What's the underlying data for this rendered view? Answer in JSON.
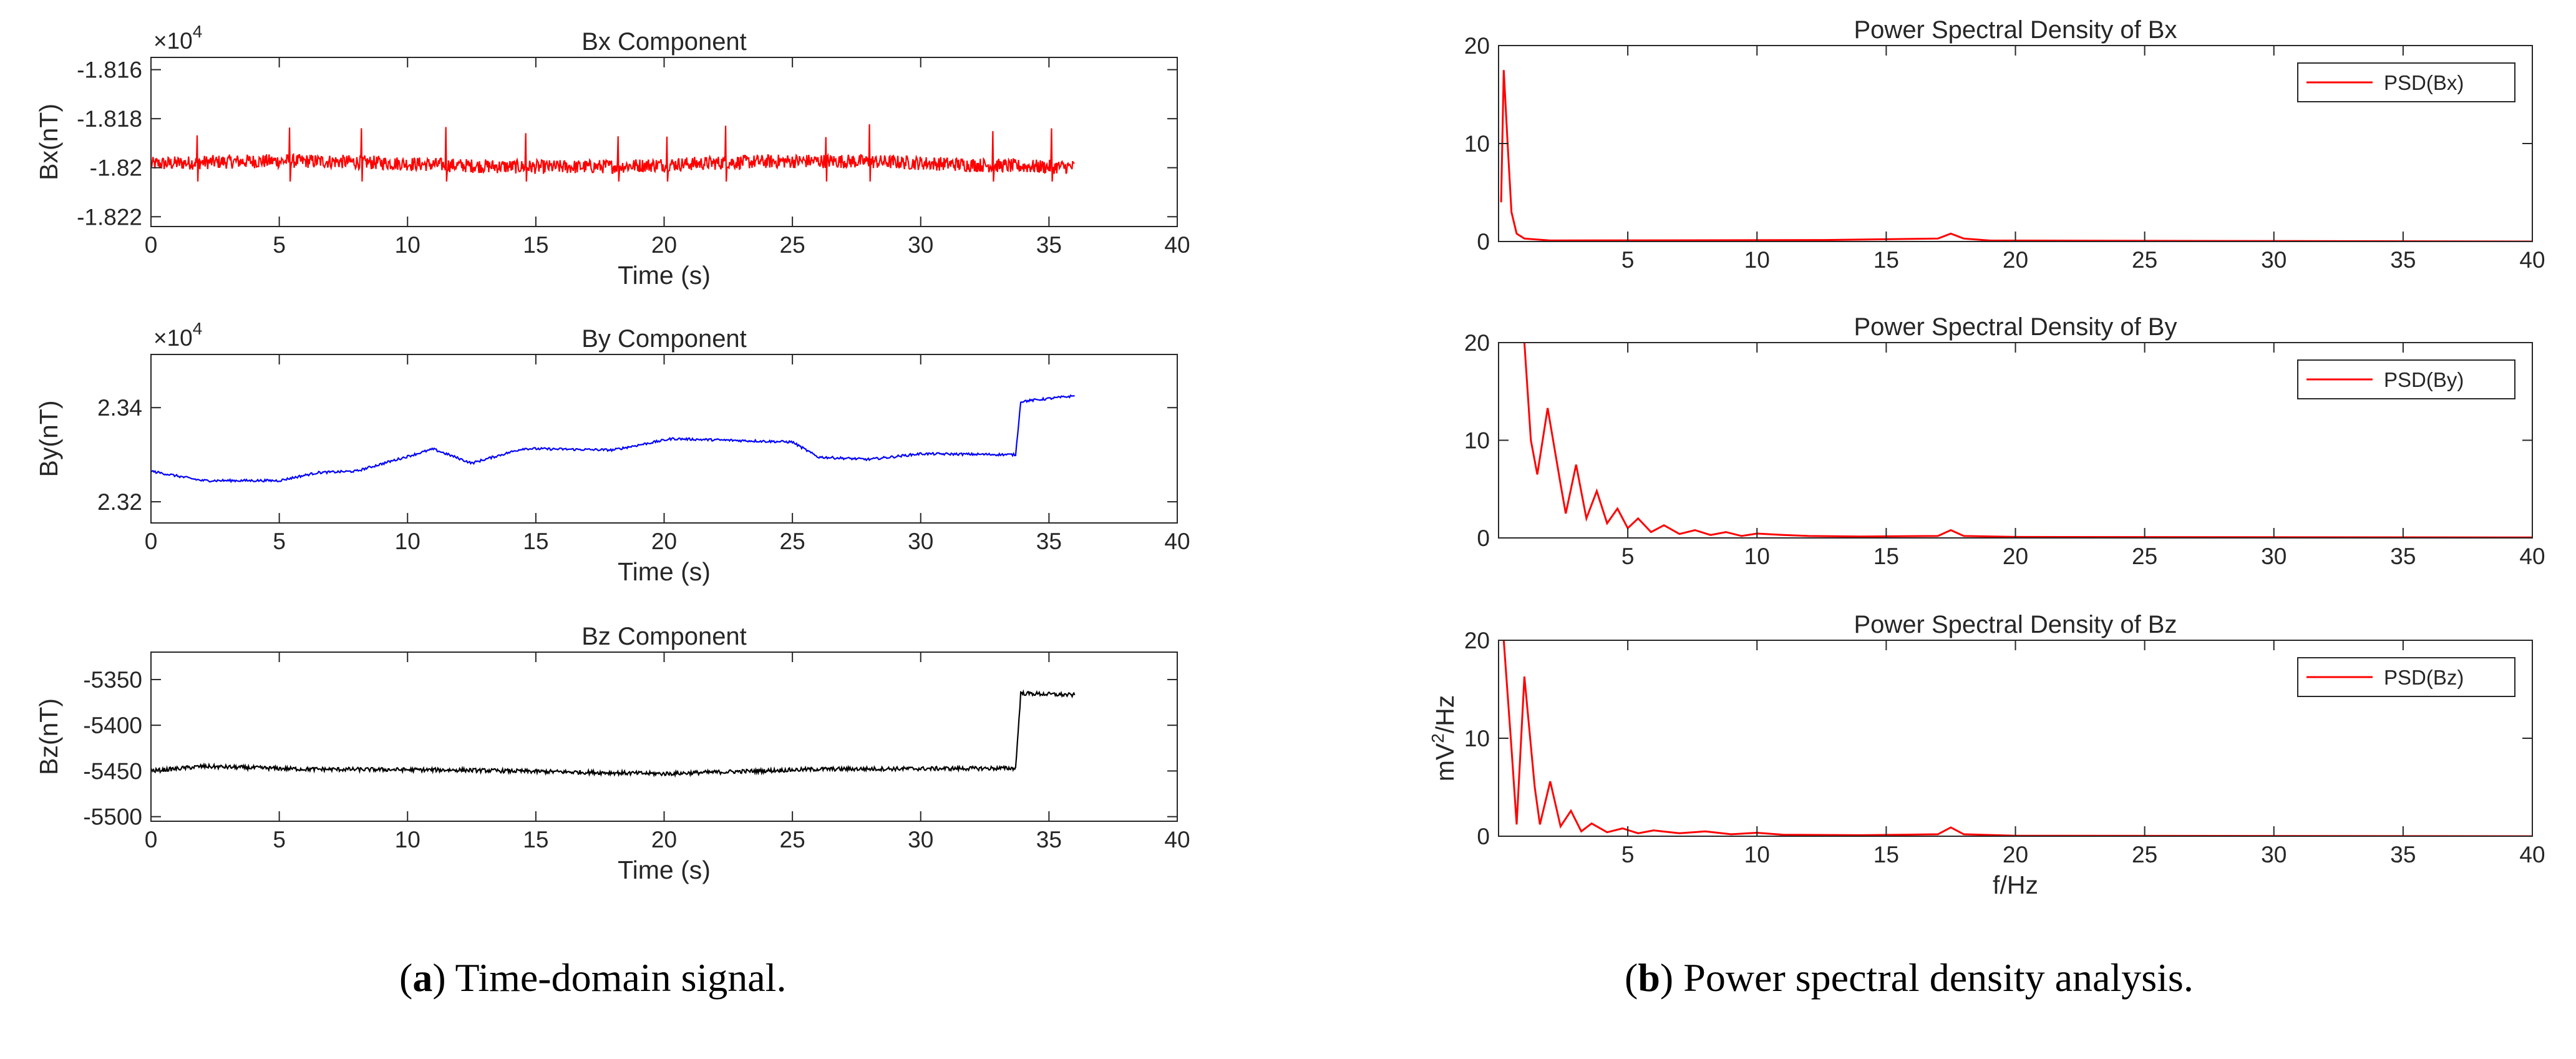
{
  "captions": {
    "a_letter": "a",
    "a_text": "Time-domain signal.",
    "b_letter": "b",
    "b_text": "Power spectral density analysis."
  },
  "chart_data": [
    {
      "id": "bx",
      "type": "line",
      "title": "Bx Component",
      "xlabel": "Time (s)",
      "ylabel": "Bx(nT)",
      "xlim": [
        0,
        40
      ],
      "xticks": [
        0,
        5,
        10,
        15,
        20,
        25,
        30,
        35,
        40
      ],
      "ylim": [
        -1.8224,
        -1.8155
      ],
      "yticks": [
        -1.822,
        -1.82,
        -1.818,
        -1.816
      ],
      "ytick_labels": [
        "-1.822",
        "-1.82",
        "-1.818",
        "-1.816"
      ],
      "exponent": "10",
      "exponent_power": "4",
      "color": "#ff0000",
      "series": [
        {
          "name": "Bx",
          "values": {
            "duration": 36,
            "base": -1.81985,
            "noise": 0.00018,
            "drift": 0.00012,
            "spikes": [
              1.8,
              5.4,
              8.2,
              11.5,
              14.6,
              18.2,
              20.1,
              22.4,
              26.3,
              28.0,
              32.8,
              35.1
            ],
            "spike_height": 0.0013
          }
        }
      ]
    },
    {
      "id": "by",
      "type": "line",
      "title": "By Component",
      "xlabel": "Time (s)",
      "ylabel": "By(nT)",
      "xlim": [
        0,
        40
      ],
      "xticks": [
        0,
        5,
        10,
        15,
        20,
        25,
        30,
        35,
        40
      ],
      "ylim": [
        2.3155,
        2.3513
      ],
      "yticks": [
        2.32,
        2.34
      ],
      "ytick_labels": [
        "2.32",
        "2.34"
      ],
      "exponent": "10",
      "exponent_power": "4",
      "color": "#0000ff",
      "series": [
        {
          "name": "By",
          "values": {
            "points": [
              [
                0,
                2.3265
              ],
              [
                2,
                2.3245
              ],
              [
                5,
                2.3245
              ],
              [
                6.5,
                2.3262
              ],
              [
                8,
                2.3265
              ],
              [
                11,
                2.3312
              ],
              [
                12.5,
                2.3282
              ],
              [
                14.5,
                2.3313
              ],
              [
                18,
                2.331
              ],
              [
                20.3,
                2.3334
              ],
              [
                25,
                2.3327
              ],
              [
                26,
                2.3295
              ],
              [
                28,
                2.329
              ],
              [
                30,
                2.3302
              ],
              [
                33.7,
                2.33
              ],
              [
                33.9,
                2.3413
              ],
              [
                36,
                2.3425
              ]
            ]
          }
        }
      ]
    },
    {
      "id": "bz",
      "type": "line",
      "title": "Bz Component",
      "xlabel": "Time (s)",
      "ylabel": "Bz(nT)",
      "xlim": [
        0,
        40
      ],
      "xticks": [
        0,
        5,
        10,
        15,
        20,
        25,
        30,
        35,
        40
      ],
      "ylim": [
        -5505,
        -5320
      ],
      "yticks": [
        -5500,
        -5450,
        -5400,
        -5350
      ],
      "ytick_labels": [
        "-5500",
        "-5450",
        "-5400",
        "-5350"
      ],
      "color": "#000000",
      "series": [
        {
          "name": "Bz",
          "values": {
            "points": [
              [
                0,
                -5450
              ],
              [
                2,
                -5445
              ],
              [
                6,
                -5448
              ],
              [
                12,
                -5449
              ],
              [
                20,
                -5453
              ],
              [
                26,
                -5448
              ],
              [
                33.7,
                -5447
              ],
              [
                33.9,
                -5365
              ],
              [
                36,
                -5367
              ]
            ]
          }
        }
      ]
    },
    {
      "id": "psdx",
      "type": "line",
      "title": "Power Spectral Density of Bx",
      "xlabel": "",
      "ylabel": "",
      "xlim": [
        0,
        40
      ],
      "xticks": [
        5,
        10,
        15,
        20,
        25,
        30,
        35,
        40
      ],
      "ylim": [
        0,
        20
      ],
      "yticks": [
        0,
        10,
        20
      ],
      "ytick_labels": [
        "0",
        "10",
        "20"
      ],
      "color": "#ff0000",
      "legend": "PSD(Bx)",
      "series": [
        {
          "name": "PSD(Bx)",
          "values": {
            "points": [
              [
                0.1,
                4
              ],
              [
                0.2,
                17.5
              ],
              [
                0.35,
                10
              ],
              [
                0.5,
                3
              ],
              [
                0.7,
                0.8
              ],
              [
                1.0,
                0.3
              ],
              [
                2,
                0.1
              ],
              [
                12.6,
                0.15
              ],
              [
                17,
                0.3
              ],
              [
                17.5,
                0.8
              ],
              [
                18,
                0.3
              ],
              [
                19,
                0.1
              ],
              [
                40,
                0
              ]
            ]
          }
        }
      ]
    },
    {
      "id": "psdy",
      "type": "line",
      "title": "Power Spectral Density of By",
      "xlabel": "",
      "ylabel": "",
      "xlim": [
        0,
        40
      ],
      "xticks": [
        5,
        10,
        15,
        20,
        25,
        30,
        35,
        40
      ],
      "ylim": [
        0,
        20
      ],
      "yticks": [
        0,
        10,
        20
      ],
      "ytick_labels": [
        "0",
        "10",
        "20"
      ],
      "color": "#ff0000",
      "legend": "PSD(By)",
      "series": [
        {
          "name": "PSD(By)",
          "values": {
            "points": [
              [
                1.0,
                20
              ],
              [
                1.25,
                10
              ],
              [
                1.5,
                6.5
              ],
              [
                1.9,
                13.3
              ],
              [
                2.4,
                5.5
              ],
              [
                2.6,
                2.5
              ],
              [
                3.0,
                7.5
              ],
              [
                3.4,
                2.0
              ],
              [
                3.8,
                4.8
              ],
              [
                4.2,
                1.5
              ],
              [
                4.6,
                3.0
              ],
              [
                5.0,
                1.0
              ],
              [
                5.4,
                2.0
              ],
              [
                5.9,
                0.6
              ],
              [
                6.4,
                1.3
              ],
              [
                7.0,
                0.4
              ],
              [
                7.6,
                0.8
              ],
              [
                8.2,
                0.3
              ],
              [
                8.8,
                0.6
              ],
              [
                9.4,
                0.2
              ],
              [
                10.0,
                0.45
              ],
              [
                11,
                0.3
              ],
              [
                12,
                0.2
              ],
              [
                14,
                0.15
              ],
              [
                17,
                0.2
              ],
              [
                17.5,
                0.8
              ],
              [
                18,
                0.2
              ],
              [
                20,
                0.1
              ],
              [
                40,
                0.05
              ]
            ]
          }
        }
      ]
    },
    {
      "id": "psdz",
      "type": "line",
      "title": "Power Spectral Density of Bz",
      "xlabel": "f/Hz",
      "ylabel": "mV²/Hz",
      "ylabel_base": "mV",
      "ylabel_sup": "2",
      "ylabel_tail": "/Hz",
      "xlim": [
        0,
        40
      ],
      "xticks": [
        5,
        10,
        15,
        20,
        25,
        30,
        35,
        40
      ],
      "ylim": [
        0,
        20
      ],
      "yticks": [
        0,
        10,
        20
      ],
      "ytick_labels": [
        "0",
        "10",
        "20"
      ],
      "color": "#ff0000",
      "legend": "PSD(Bz)",
      "series": [
        {
          "name": "PSD(Bz)",
          "values": {
            "points": [
              [
                0.2,
                20
              ],
              [
                0.5,
                9
              ],
              [
                0.7,
                1.2
              ],
              [
                1.0,
                16.3
              ],
              [
                1.4,
                5
              ],
              [
                1.6,
                1.2
              ],
              [
                2.0,
                5.6
              ],
              [
                2.4,
                1.0
              ],
              [
                2.8,
                2.6
              ],
              [
                3.2,
                0.5
              ],
              [
                3.6,
                1.3
              ],
              [
                4.2,
                0.4
              ],
              [
                4.8,
                0.8
              ],
              [
                5.4,
                0.3
              ],
              [
                6.0,
                0.6
              ],
              [
                7,
                0.3
              ],
              [
                8,
                0.5
              ],
              [
                9,
                0.2
              ],
              [
                10,
                0.35
              ],
              [
                11,
                0.15
              ],
              [
                14,
                0.1
              ],
              [
                17,
                0.2
              ],
              [
                17.5,
                0.9
              ],
              [
                18,
                0.2
              ],
              [
                20,
                0.05
              ],
              [
                40,
                0
              ]
            ]
          }
        }
      ]
    }
  ]
}
